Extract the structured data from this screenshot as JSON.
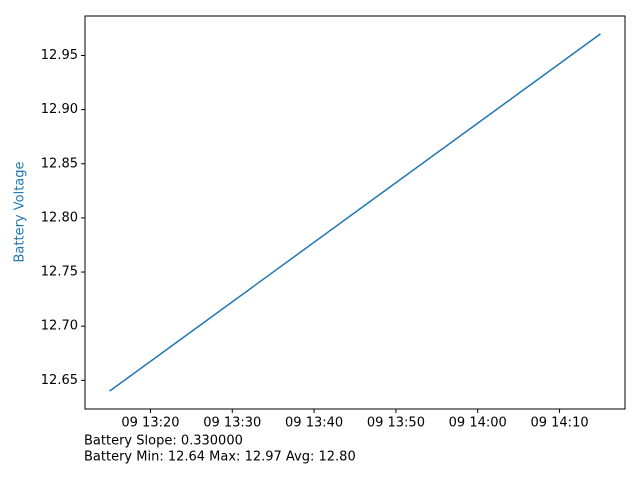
{
  "chart_data": {
    "type": "line",
    "y_label": "Battery Voltage",
    "x": [
      "09 13:15",
      "09 14:15"
    ],
    "series": [
      {
        "name": "Battery Voltage",
        "color": "#1f77b4",
        "values": [
          12.64,
          12.97
        ]
      }
    ],
    "xlim": [
      "09 13:12",
      "09 14:18"
    ],
    "xticks": [
      "09 13:20",
      "09 13:30",
      "09 13:40",
      "09 13:50",
      "09 14:00",
      "09 14:10"
    ],
    "ylim": [
      12.6235,
      12.9865
    ],
    "yticks": [
      12.65,
      {
        "value": 12.7,
        "label": "12.70"
      },
      12.75,
      {
        "value": 12.8,
        "label": "12.80"
      },
      12.85,
      {
        "value": 12.9,
        "label": "12.90"
      },
      12.95
    ],
    "grid": false,
    "annotations": [
      "Battery Slope: 0.330000",
      "Battery Min: 12.64 Max: 12.97 Avg: 12.80"
    ]
  }
}
